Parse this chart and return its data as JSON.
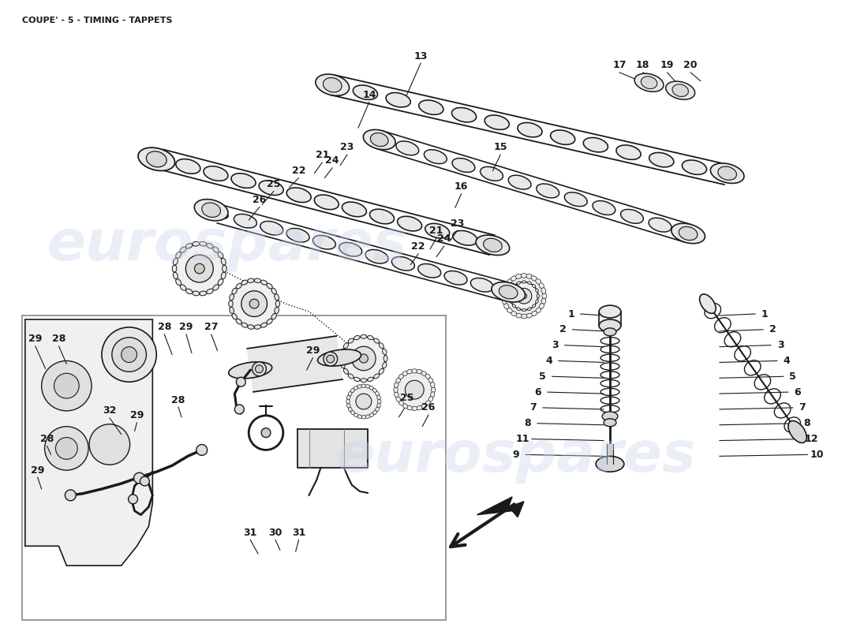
{
  "title": "COUPE' - 5 - TIMING - TAPPETS",
  "bg": "#ffffff",
  "title_fontsize": 8,
  "fig_width": 11.0,
  "fig_height": 8.0,
  "dpi": 100,
  "wm_text": "eurospares",
  "wm_color": "#c8d4e8",
  "wm_alpha": 0.38,
  "lc": "#1a1a1a",
  "lw_cam": 8,
  "lw_thin": 1.0,
  "lw_med": 1.5
}
